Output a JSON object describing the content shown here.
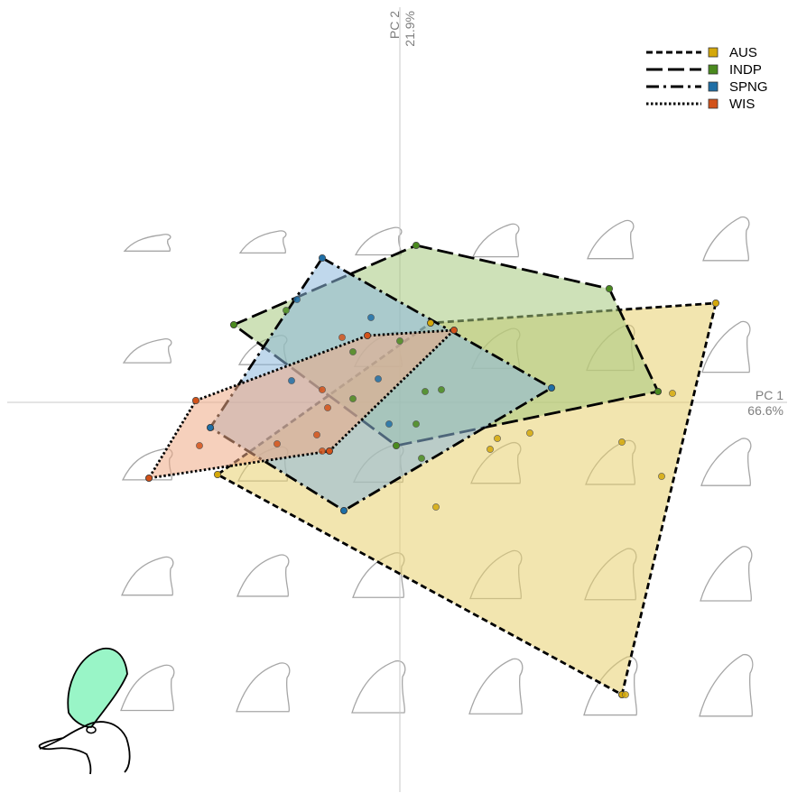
{
  "chart_data": {
    "type": "scatter",
    "title": "",
    "x_axis": {
      "label": "PC 1",
      "variance": "66.6%",
      "range": [
        -0.22,
        0.22
      ]
    },
    "y_axis": {
      "label": "PC 2",
      "variance": "21.9%",
      "range": [
        -0.22,
        0.22
      ]
    },
    "grid": false,
    "legend_position": "top-right",
    "series": [
      {
        "name": "AUS",
        "color": "#D4A80B",
        "fill": "#E8CF6E",
        "line_style": "short-dash",
        "points": [
          [
            0.151,
            0.005
          ],
          [
            0.175,
            0.055
          ],
          [
            0.123,
            -0.022
          ],
          [
            0.05,
            -0.026
          ],
          [
            0.054,
            -0.02
          ],
          [
            0.072,
            -0.017
          ],
          [
            0.145,
            -0.041
          ],
          [
            0.02,
            -0.058
          ],
          [
            0.125,
            -0.162
          ],
          [
            -0.101,
            -0.04
          ]
        ],
        "hull": [
          [
            0.175,
            0.055
          ],
          [
            0.123,
            -0.162
          ],
          [
            -0.101,
            -0.04
          ],
          [
            0.017,
            0.044
          ]
        ]
      },
      {
        "name": "INDP",
        "color": "#4A8A1E",
        "fill": "#A5C97E",
        "line_style": "long-dash",
        "points": [
          [
            0.009,
            0.087
          ],
          [
            0.116,
            0.063
          ],
          [
            0.014,
            0.006
          ],
          [
            0.0,
            0.034
          ],
          [
            0.023,
            0.007
          ],
          [
            -0.026,
            0.028
          ],
          [
            0.009,
            -0.012
          ],
          [
            -0.063,
            0.051
          ],
          [
            -0.002,
            -0.024
          ],
          [
            -0.026,
            0.002
          ],
          [
            0.012,
            -0.031
          ]
        ],
        "hull": [
          [
            0.009,
            0.087
          ],
          [
            0.116,
            0.063
          ],
          [
            0.143,
            0.006
          ],
          [
            -0.002,
            -0.024
          ],
          [
            -0.092,
            0.043
          ]
        ]
      },
      {
        "name": "SPNG",
        "color": "#1F6FA6",
        "fill": "#8DB8DD",
        "line_style": "dash-dot",
        "points": [
          [
            -0.043,
            0.08
          ],
          [
            -0.057,
            0.057
          ],
          [
            -0.016,
            0.047
          ],
          [
            -0.06,
            0.012
          ],
          [
            -0.006,
            -0.012
          ],
          [
            -0.012,
            0.013
          ]
        ],
        "hull": [
          [
            -0.043,
            0.08
          ],
          [
            0.084,
            0.008
          ],
          [
            -0.031,
            -0.06
          ],
          [
            -0.105,
            -0.014
          ]
        ]
      },
      {
        "name": "WIS",
        "color": "#D2521A",
        "fill": "#EFAA85",
        "line_style": "dotted",
        "points": [
          [
            -0.113,
            0.001
          ],
          [
            -0.111,
            -0.024
          ],
          [
            -0.068,
            -0.023
          ],
          [
            -0.046,
            -0.018
          ],
          [
            -0.04,
            -0.003
          ],
          [
            -0.043,
            0.007
          ],
          [
            -0.032,
            0.036
          ],
          [
            -0.043,
            -0.027
          ]
        ],
        "hull": [
          [
            -0.113,
            0.001
          ],
          [
            -0.018,
            0.037
          ],
          [
            0.03,
            0.04
          ],
          [
            -0.039,
            -0.027
          ],
          [
            -0.139,
            -0.042
          ]
        ]
      }
    ]
  }
}
